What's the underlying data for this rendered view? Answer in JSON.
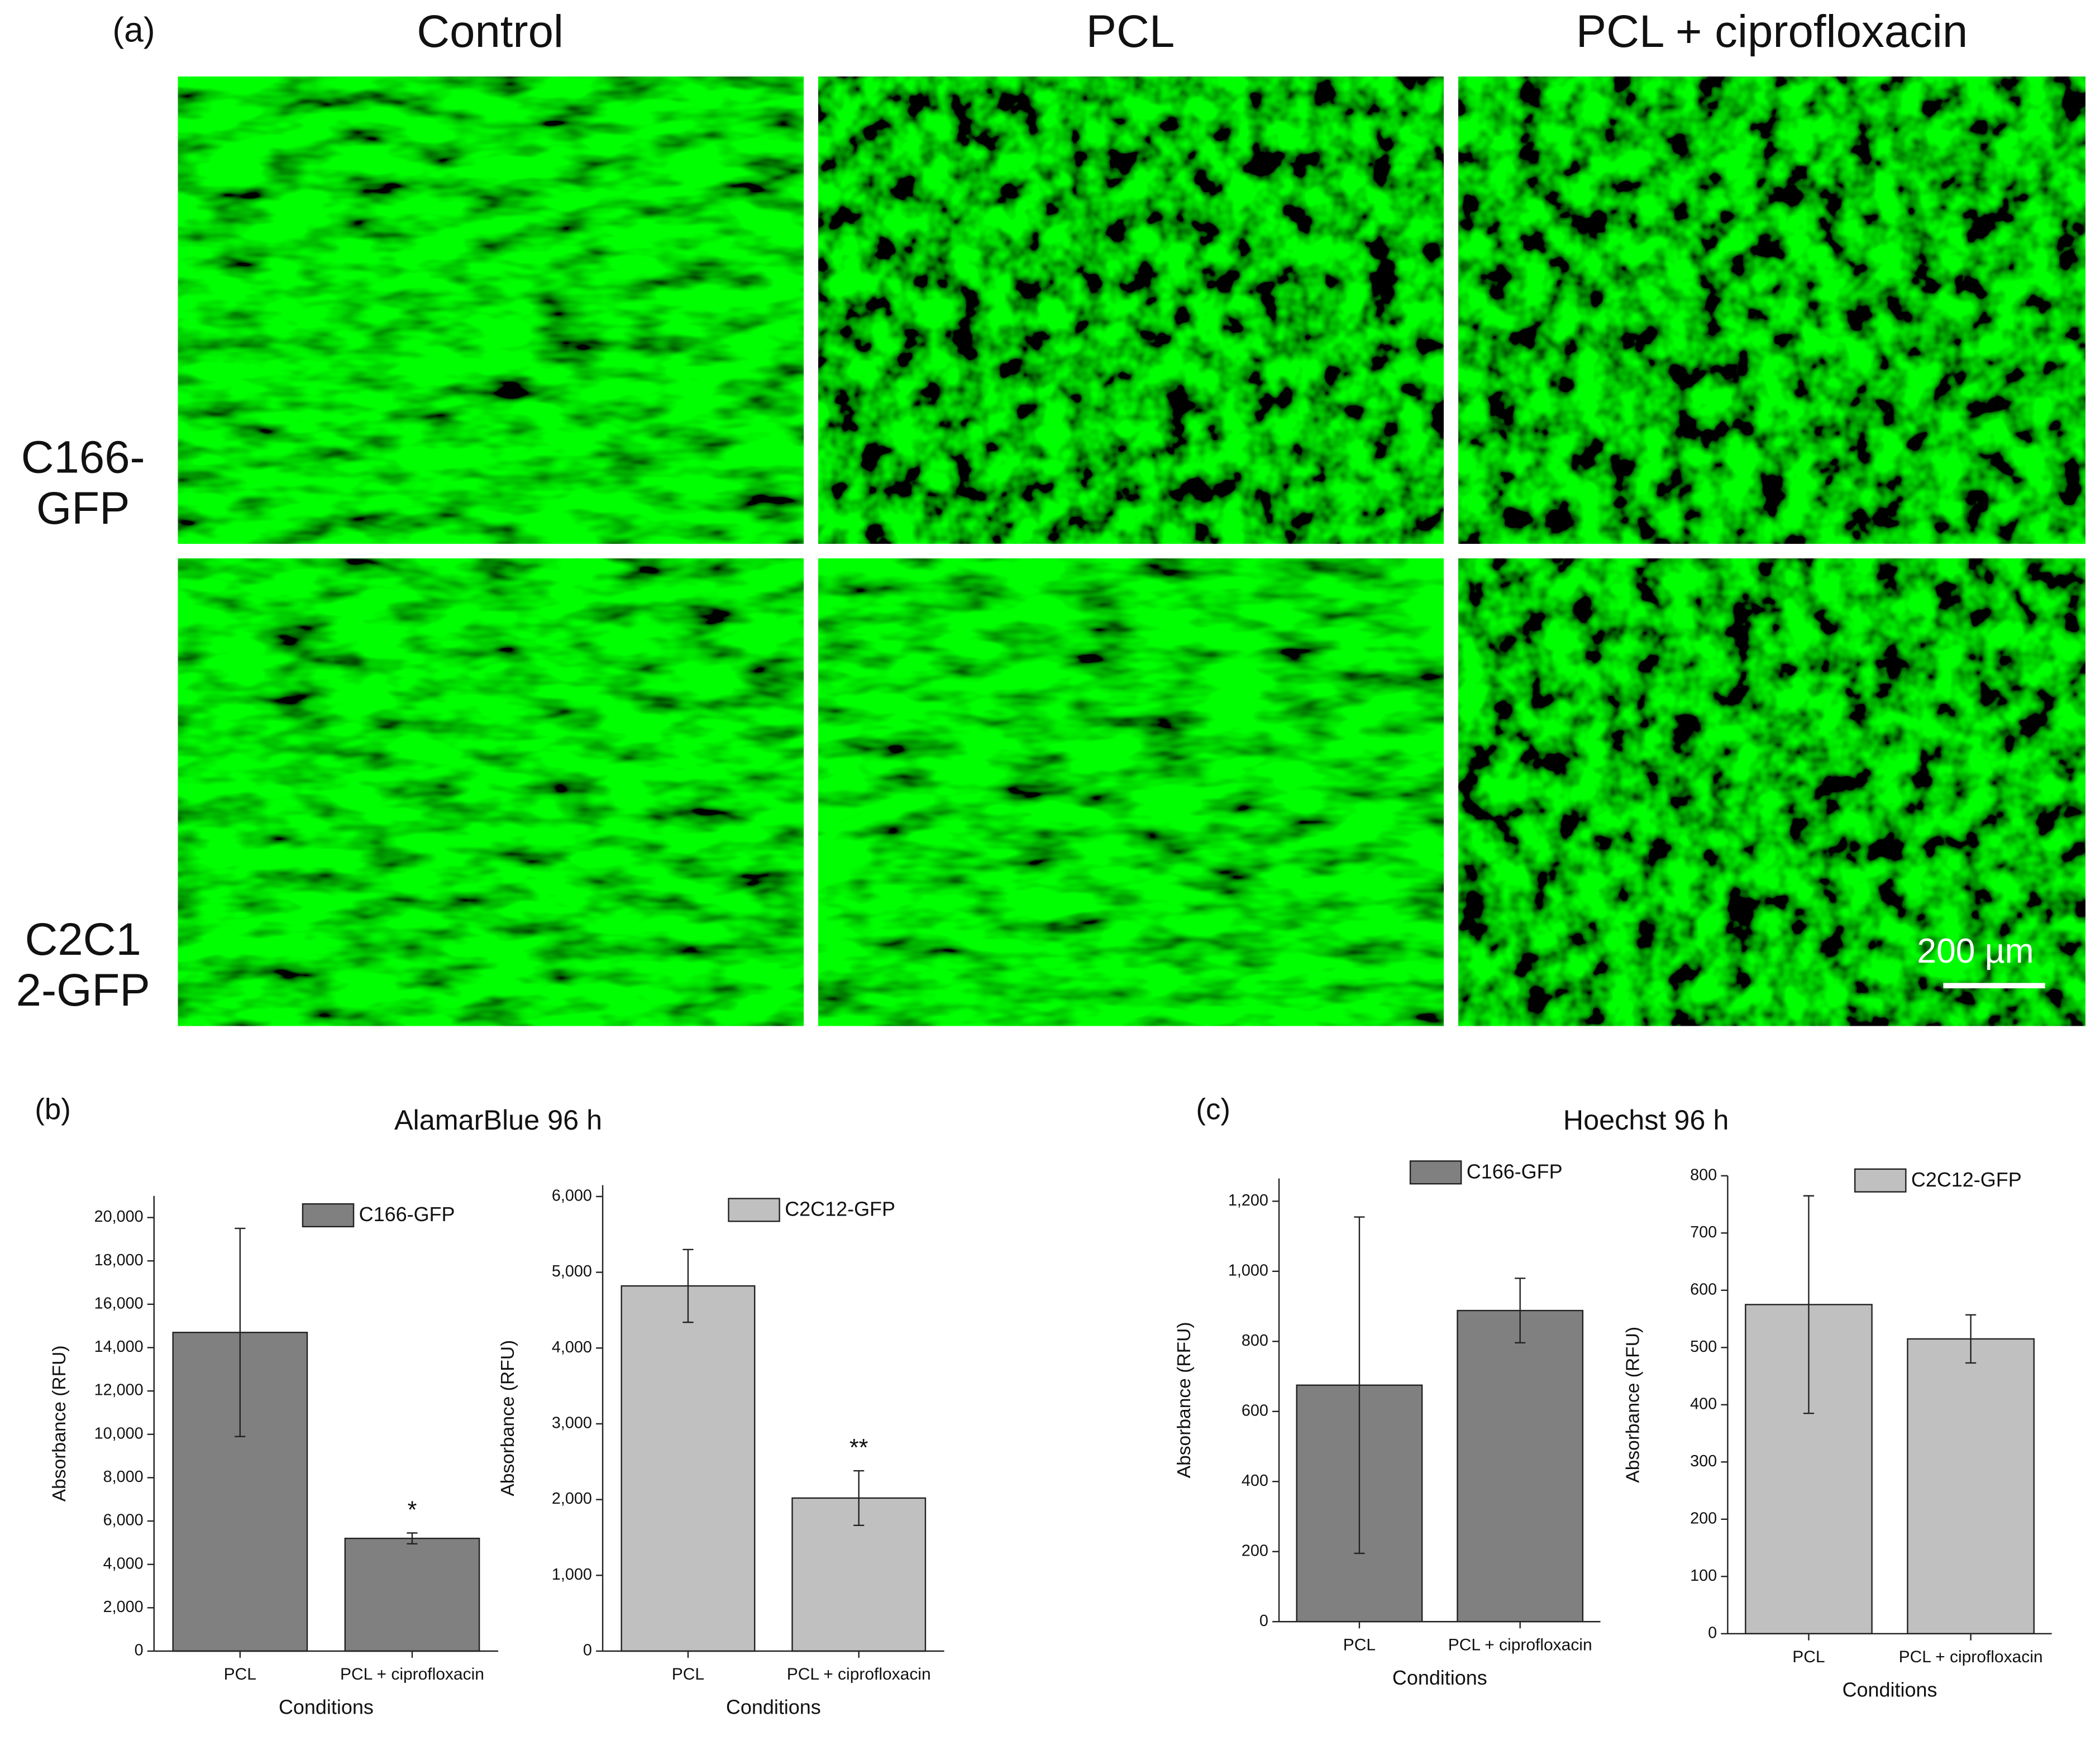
{
  "figure": {
    "panel_label": "(a)",
    "columns": [
      "Control",
      "PCL",
      "PCL + ciprofloxacin"
    ],
    "rows": [
      [
        "C166-",
        "GFP"
      ],
      [
        "C2C1",
        "2-GFP"
      ]
    ],
    "scale_bar": "200 µm"
  },
  "chart_data": [
    {
      "type": "bar",
      "panel_label": "(b)",
      "title": "AlamarBlue 96 h",
      "x_label": "Conditions",
      "y_label": "Absorbance (RFU)",
      "categories": [
        "PCL",
        "PCL + ciprofloxacin"
      ],
      "series": [
        {
          "name": "C166-GFP",
          "color": "#808080",
          "values": [
            14700,
            5200
          ],
          "errors": [
            4800,
            250
          ]
        }
      ],
      "annotations": [
        {
          "text": "*",
          "x": "PCL + ciprofloxacin"
        }
      ],
      "ylim": [
        0,
        21000
      ],
      "yticks": [
        0,
        {
          "value": 2000,
          "label": "2,000"
        },
        {
          "value": 4000,
          "label": "4,000"
        },
        {
          "value": 6000,
          "label": "6,000"
        },
        {
          "value": 8000,
          "label": "8,000"
        },
        {
          "value": 10000,
          "label": "10,000"
        },
        {
          "value": 12000,
          "label": "12,000"
        },
        {
          "value": 14000,
          "label": "14,000"
        },
        {
          "value": 16000,
          "label": "16,000"
        },
        {
          "value": 18000,
          "label": "18,000"
        },
        {
          "value": 20000,
          "label": "20,000"
        }
      ],
      "legend": "upper right"
    },
    {
      "type": "bar",
      "x_label": "Conditions",
      "y_label": "Absorbance (RFU)",
      "categories": [
        "PCL",
        "PCL + ciprofloxacin"
      ],
      "series": [
        {
          "name": "C2C12-GFP",
          "color": "#c0c0c0",
          "values": [
            4820,
            2020
          ],
          "errors": [
            480,
            360
          ]
        }
      ],
      "annotations": [
        {
          "text": "**",
          "x": "PCL + ciprofloxacin"
        }
      ],
      "ylim": [
        0,
        6150
      ],
      "yticks": [
        0,
        {
          "value": 1000,
          "label": "1,000"
        },
        {
          "value": 2000,
          "label": "2,000"
        },
        {
          "value": 3000,
          "label": "3,000"
        },
        {
          "value": 4000,
          "label": "4,000"
        },
        {
          "value": 5000,
          "label": "5,000"
        },
        {
          "value": 6000,
          "label": "6,000"
        }
      ],
      "legend": "upper right"
    },
    {
      "type": "bar",
      "panel_label": "(c)",
      "title": "Hoechst 96 h",
      "x_label": "Conditions",
      "y_label": "Absorbance (RFU)",
      "categories": [
        "PCL",
        "PCL + ciprofloxacin"
      ],
      "series": [
        {
          "name": "C166-GFP",
          "color": "#808080",
          "values": [
            675,
            888
          ],
          "errors": [
            480,
            92
          ]
        }
      ],
      "ylim": [
        0,
        1265
      ],
      "yticks": [
        0,
        200,
        400,
        600,
        800,
        {
          "value": 1000,
          "label": "1,000"
        },
        {
          "value": 1200,
          "label": "1,200"
        }
      ],
      "legend": "upper right"
    },
    {
      "type": "bar",
      "x_label": "Conditions",
      "y_label": "Absorbance (RFU)",
      "categories": [
        "PCL",
        "PCL + ciprofloxacin"
      ],
      "series": [
        {
          "name": "C2C12-GFP",
          "color": "#c0c0c0",
          "values": [
            575,
            515
          ],
          "errors": [
            190,
            42
          ]
        }
      ],
      "ylim": [
        0,
        800
      ],
      "yticks": [
        0,
        100,
        200,
        300,
        400,
        500,
        600,
        700,
        800
      ],
      "legend": "upper right"
    }
  ]
}
